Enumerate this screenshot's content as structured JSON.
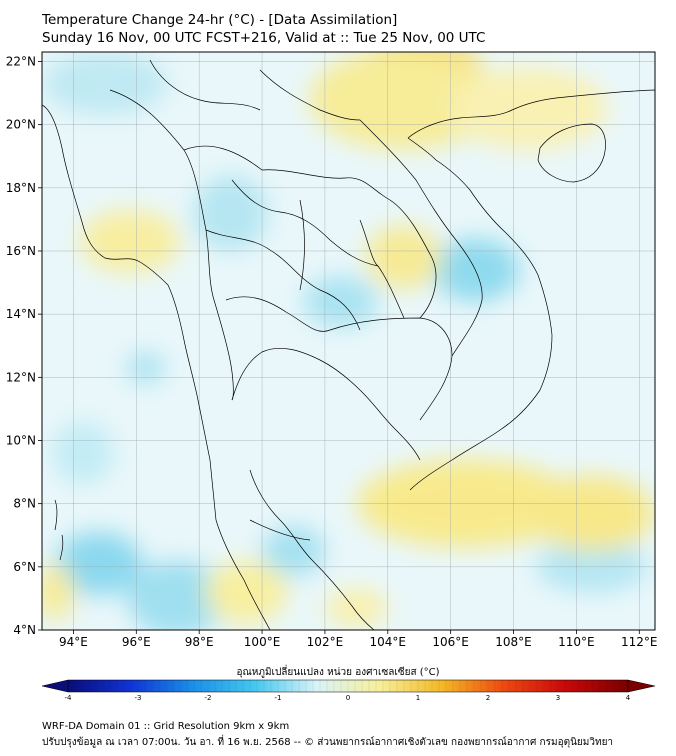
{
  "title_line1": "Temperature Change 24-hr (°C) - [Data Assimilation]",
  "title_line2": "Sunday 16 Nov, 00 UTC FCST+216, Valid at :: Tue 25 Nov, 00 UTC",
  "map": {
    "lon_range": [
      93,
      112.5
    ],
    "lat_range": [
      4,
      22.3
    ],
    "lon_ticks": [
      "94°E",
      "96°E",
      "98°E",
      "100°E",
      "102°E",
      "104°E",
      "106°E",
      "108°E",
      "110°E",
      "112°E"
    ],
    "lon_values": [
      94,
      96,
      98,
      100,
      102,
      104,
      106,
      108,
      110,
      112
    ],
    "lat_ticks": [
      "4°N",
      "6°N",
      "8°N",
      "10°N",
      "12°N",
      "14°N",
      "16°N",
      "18°N",
      "20°N",
      "22°N"
    ],
    "lat_values": [
      4,
      6,
      8,
      10,
      12,
      14,
      16,
      18,
      20,
      22
    ],
    "background_color": "#e9f7fa",
    "warm_areas": [
      {
        "lon": 105.0,
        "lat": 21.8,
        "rx": 2.0,
        "ry": 0.9,
        "color": "#f4d44e"
      },
      {
        "lon": 104.5,
        "lat": 20.8,
        "rx": 3.0,
        "ry": 1.6,
        "color": "#f7ec98"
      },
      {
        "lon": 108.5,
        "lat": 20.5,
        "rx": 2.5,
        "ry": 1.3,
        "color": "#f9f1b3"
      },
      {
        "lon": 95.8,
        "lat": 16.3,
        "rx": 1.6,
        "ry": 1.0,
        "color": "#f8eea0"
      },
      {
        "lon": 104.5,
        "lat": 15.8,
        "rx": 1.2,
        "ry": 1.0,
        "color": "#f7ea94"
      },
      {
        "lon": 106.5,
        "lat": 8.0,
        "rx": 3.5,
        "ry": 1.4,
        "color": "#f8ea8c"
      },
      {
        "lon": 110.5,
        "lat": 7.7,
        "rx": 2.0,
        "ry": 1.2,
        "color": "#f7e88a"
      },
      {
        "lon": 99.5,
        "lat": 5.2,
        "rx": 1.3,
        "ry": 1.0,
        "color": "#f8ef9f"
      },
      {
        "lon": 93.4,
        "lat": 5.2,
        "rx": 0.6,
        "ry": 0.9,
        "color": "#f8eb95"
      },
      {
        "lon": 103.0,
        "lat": 4.7,
        "rx": 1.0,
        "ry": 0.6,
        "color": "#f9f0aa"
      }
    ],
    "cool_areas": [
      {
        "lon": 95.0,
        "lat": 21.3,
        "rx": 2.0,
        "ry": 1.0,
        "color": "#bfe9f3"
      },
      {
        "lon": 99.0,
        "lat": 17.2,
        "rx": 1.2,
        "ry": 1.2,
        "color": "#b5e6f2"
      },
      {
        "lon": 106.8,
        "lat": 15.4,
        "rx": 1.4,
        "ry": 1.0,
        "color": "#8fdaee"
      },
      {
        "lon": 102.5,
        "lat": 14.4,
        "rx": 1.2,
        "ry": 0.8,
        "color": "#a9e3f2"
      },
      {
        "lon": 96.3,
        "lat": 12.3,
        "rx": 0.6,
        "ry": 0.5,
        "color": "#a8e2f1"
      },
      {
        "lon": 94.8,
        "lat": 6.1,
        "rx": 1.4,
        "ry": 1.0,
        "color": "#8bd8ee"
      },
      {
        "lon": 97.3,
        "lat": 5.0,
        "rx": 1.6,
        "ry": 1.2,
        "color": "#9fdff0"
      },
      {
        "lon": 101.0,
        "lat": 6.5,
        "rx": 1.0,
        "ry": 0.8,
        "color": "#a5e1f1"
      },
      {
        "lon": 110.5,
        "lat": 6.0,
        "rx": 1.8,
        "ry": 0.8,
        "color": "#b4e6f3"
      },
      {
        "lon": 94.3,
        "lat": 9.6,
        "rx": 1.0,
        "ry": 1.0,
        "color": "#c3ecf5"
      }
    ],
    "land_color": "#000000"
  },
  "colorbar": {
    "title": "อุณหภูมิเปลี่ยนแปลง หน่วย องศาเซลเซียส (°C)",
    "min": -4,
    "max": 4,
    "tick_labels": [
      "-4",
      "-3",
      "-2",
      "-1",
      "0",
      "1",
      "2",
      "3",
      "4"
    ],
    "colors": [
      "#0a0d7a",
      "#1133d6",
      "#1a8fe8",
      "#44c8ef",
      "#d9f3f8",
      "#f7ef9c",
      "#f4b926",
      "#ee4a10",
      "#c8080a",
      "#7a0000"
    ]
  },
  "footer_line1": "WRF-DA Domain 01 :: Grid Resolution 9km x 9km",
  "footer_line2": "ปรับปรุงข้อมูล ณ เวลา 07:00น. วัน อา. ที่ 16 พ.ย. 2568 -- © ส่วนพยากรณ์อากาศเชิงตัวเลข กองพยากรณ์อากาศ กรมอุตุนิยมวิทยา"
}
